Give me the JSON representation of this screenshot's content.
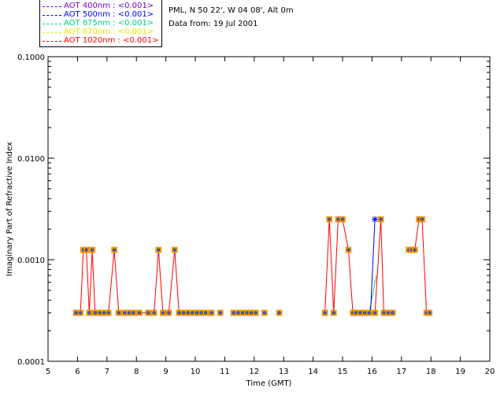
{
  "header": {
    "site_line": "PML, N 50 22', W 04 08', Alt 0m",
    "date_line": "Data from: 19 Jul 2001"
  },
  "legend": [
    {
      "label": "AOT  400nm : <0.001>",
      "color": "#7a00c8"
    },
    {
      "label": "AOT  500nm : <0.001>",
      "color": "#0000ff"
    },
    {
      "label": "AOT  675nm : <0.001>",
      "color": "#00d080"
    },
    {
      "label": "AOT  870nm : <0.001>",
      "color": "#e8e800"
    },
    {
      "label": "AOT 1020nm : <0.001>",
      "color": "#ff0000"
    }
  ],
  "chart_data": {
    "type": "line",
    "xlabel": "Time (GMT)",
    "ylabel": "Imaginary Part of Refractive Index",
    "xlim": [
      5,
      20
    ],
    "ylim": [
      0.0001,
      0.1
    ],
    "yscale": "log",
    "x_ticks": [
      "5",
      "6",
      "7",
      "8",
      "9",
      "10",
      "11",
      "12",
      "13",
      "14",
      "15",
      "16",
      "17",
      "18",
      "19",
      "20"
    ],
    "y_ticks": [
      "0.0001",
      "0.0010",
      "0.0100",
      "0.1000"
    ],
    "grid": false,
    "series": [
      {
        "name": "AOT 1020nm : <0.001>",
        "segments": [
          [
            [
              5.95,
              0.0003
            ],
            [
              6.1,
              0.0003
            ],
            [
              6.2,
              0.00125
            ],
            [
              6.3,
              0.00125
            ],
            [
              6.4,
              0.0003
            ],
            [
              6.5,
              0.00125
            ],
            [
              6.6,
              0.0003
            ],
            [
              6.75,
              0.0003
            ],
            [
              6.9,
              0.0003
            ],
            [
              7.05,
              0.0003
            ],
            [
              7.25,
              0.00125
            ],
            [
              7.4,
              0.0003
            ],
            [
              7.6,
              0.0003
            ],
            [
              7.75,
              0.0003
            ],
            [
              7.9,
              0.0003
            ],
            [
              8.1,
              0.0003
            ],
            [
              8.4,
              0.0003
            ],
            [
              8.6,
              0.0003
            ],
            [
              8.75,
              0.00125
            ],
            [
              8.9,
              0.0003
            ],
            [
              9.1,
              0.0003
            ],
            [
              9.3,
              0.00125
            ],
            [
              9.45,
              0.0003
            ],
            [
              9.6,
              0.0003
            ],
            [
              9.75,
              0.0003
            ],
            [
              9.9,
              0.0003
            ],
            [
              10.05,
              0.0003
            ],
            [
              10.2,
              0.0003
            ],
            [
              10.35,
              0.0003
            ],
            [
              10.55,
              0.0003
            ]
          ],
          [
            [
              11.3,
              0.0003
            ],
            [
              11.45,
              0.0003
            ],
            [
              11.6,
              0.0003
            ],
            [
              11.75,
              0.0003
            ],
            [
              11.9,
              0.0003
            ],
            [
              12.05,
              0.0003
            ]
          ],
          [
            [
              14.4,
              0.0003
            ],
            [
              14.55,
              0.0025
            ],
            [
              14.7,
              0.0003
            ],
            [
              14.85,
              0.0025
            ],
            [
              15.0,
              0.0025
            ],
            [
              15.2,
              0.00125
            ],
            [
              15.35,
              0.0003
            ],
            [
              15.45,
              0.0003
            ],
            [
              15.6,
              0.0003
            ],
            [
              15.75,
              0.0003
            ],
            [
              15.9,
              0.0003
            ],
            [
              16.1,
              0.0003
            ],
            [
              16.3,
              0.0025
            ],
            [
              16.4,
              0.0003
            ],
            [
              16.55,
              0.0003
            ],
            [
              16.7,
              0.0003
            ]
          ],
          [
            [
              17.25,
              0.00125
            ],
            [
              17.35,
              0.00125
            ],
            [
              17.45,
              0.00125
            ],
            [
              17.6,
              0.0025
            ],
            [
              17.7,
              0.0025
            ],
            [
              17.85,
              0.0003
            ],
            [
              17.95,
              0.0003
            ]
          ]
        ],
        "isolated": [
          [
            10.85,
            0.0003
          ],
          [
            12.35,
            0.0003
          ],
          [
            12.85,
            0.0003
          ]
        ]
      },
      {
        "name": "AOT  500nm : <0.001>",
        "segments": [
          [
            [
              15.95,
              0.0003
            ],
            [
              16.1,
              0.0025
            ]
          ]
        ]
      },
      {
        "name": "AOT  675nm : <0.001>",
        "segments": [
          [
            [
              15.9,
              0.0003
            ],
            [
              16.05,
              0.0005
            ],
            [
              16.15,
              0.0007
            ]
          ]
        ]
      }
    ]
  }
}
